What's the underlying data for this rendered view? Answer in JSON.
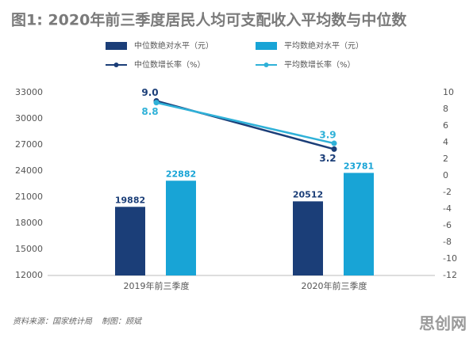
{
  "chart_data": {
    "type": "bar-line",
    "title": "图1: 2020年前三季度居民人均可支配收入平均数与中位数",
    "categories": [
      "2019年前三季度",
      "2020年前三季度"
    ],
    "series": [
      {
        "name": "中位数绝对水平（元）",
        "type": "bar",
        "color": "#1b3e78",
        "values": [
          19882,
          20512
        ]
      },
      {
        "name": "平均数绝对水平（元）",
        "type": "bar",
        "color": "#18a4d6",
        "values": [
          22882,
          23781
        ]
      },
      {
        "name": "中位数增长率（%）",
        "type": "line",
        "axis": "y2",
        "color": "#1b3e78",
        "values": [
          9,
          3.2
        ],
        "value_labels": [
          "9.0",
          "3.2"
        ]
      },
      {
        "name": "平均数增长率（%）",
        "type": "line",
        "axis": "y2",
        "color": "#2fb1d8",
        "values": [
          8.8,
          3.9
        ]
      }
    ],
    "ylim": [
      12000,
      33000
    ],
    "yticks": [
      12000,
      15000,
      18000,
      21000,
      24000,
      27000,
      30000,
      33000
    ],
    "y2lim": [
      -12,
      10
    ],
    "y2ticks": [
      -12,
      -10,
      -8,
      -6,
      -4,
      -2,
      0,
      2,
      4,
      6,
      8,
      10
    ],
    "source": "资料来源：国家统计局",
    "credit": "制图：顾斌",
    "watermark": "思创网"
  }
}
